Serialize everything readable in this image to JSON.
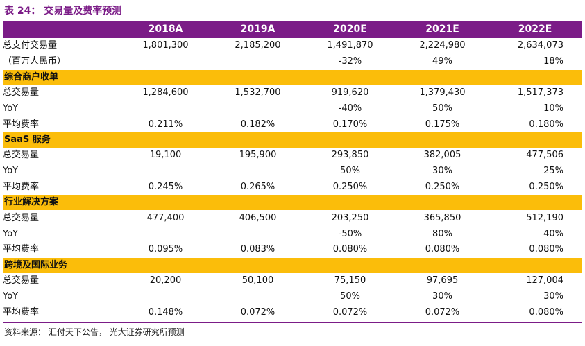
{
  "title": "表 24：  交易量及费率预测",
  "columns": [
    "",
    "2018A",
    "2019A",
    "2020E",
    "2021E",
    "2022E"
  ],
  "rows": [
    {
      "type": "data",
      "label": "总支付交易量",
      "values": [
        "1,801,300",
        "2,185,200",
        "1,491,870",
        "2,224,980",
        "2,634,073"
      ]
    },
    {
      "type": "data",
      "label": "（百万人民币）",
      "values": [
        "",
        "",
        "-32%",
        "49%",
        "18%"
      ]
    },
    {
      "type": "section",
      "label": "综合商户收单"
    },
    {
      "type": "data",
      "label": "总交易量",
      "values": [
        "1,284,600",
        "1,532,700",
        "919,620",
        "1,379,430",
        "1,517,373"
      ]
    },
    {
      "type": "data",
      "label": "YoY",
      "values": [
        "",
        "",
        "-40%",
        "50%",
        "10%"
      ]
    },
    {
      "type": "data",
      "label": "平均费率",
      "values": [
        "0.211%",
        "0.182%",
        "0.170%",
        "0.175%",
        "0.180%"
      ]
    },
    {
      "type": "section",
      "label": "SaaS 服务"
    },
    {
      "type": "data",
      "label": "总交易量",
      "values": [
        "19,100",
        "195,900",
        "293,850",
        "382,005",
        "477,506"
      ]
    },
    {
      "type": "data",
      "label": "YoY",
      "values": [
        "",
        "",
        "50%",
        "30%",
        "25%"
      ]
    },
    {
      "type": "data",
      "label": "平均费率",
      "values": [
        "0.245%",
        "0.265%",
        "0.250%",
        "0.250%",
        "0.250%"
      ]
    },
    {
      "type": "section",
      "label": "行业解决方案"
    },
    {
      "type": "data",
      "label": "总交易量",
      "values": [
        "477,400",
        "406,500",
        "203,250",
        "365,850",
        "512,190"
      ]
    },
    {
      "type": "data",
      "label": "YoY",
      "values": [
        "",
        "",
        "-50%",
        "80%",
        "40%"
      ]
    },
    {
      "type": "data",
      "label": "平均费率",
      "values": [
        "0.095%",
        "0.083%",
        "0.080%",
        "0.080%",
        "0.080%"
      ]
    },
    {
      "type": "section",
      "label": "跨境及国际业务"
    },
    {
      "type": "data",
      "label": "总交易量",
      "values": [
        "20,200",
        "50,100",
        "75,150",
        "97,695",
        "127,004"
      ]
    },
    {
      "type": "data",
      "label": "YoY",
      "values": [
        "",
        "",
        "50%",
        "30%",
        "30%"
      ]
    },
    {
      "type": "data",
      "label": "平均费率",
      "values": [
        "0.148%",
        "0.072%",
        "0.072%",
        "0.072%",
        "0.080%"
      ]
    }
  ],
  "source": "资料来源：  汇付天下公告，  光大证券研究所预测",
  "colors": {
    "header_bg": "#7b1c87",
    "section_bg": "#fbbd0a",
    "title": "#7b1c87"
  }
}
